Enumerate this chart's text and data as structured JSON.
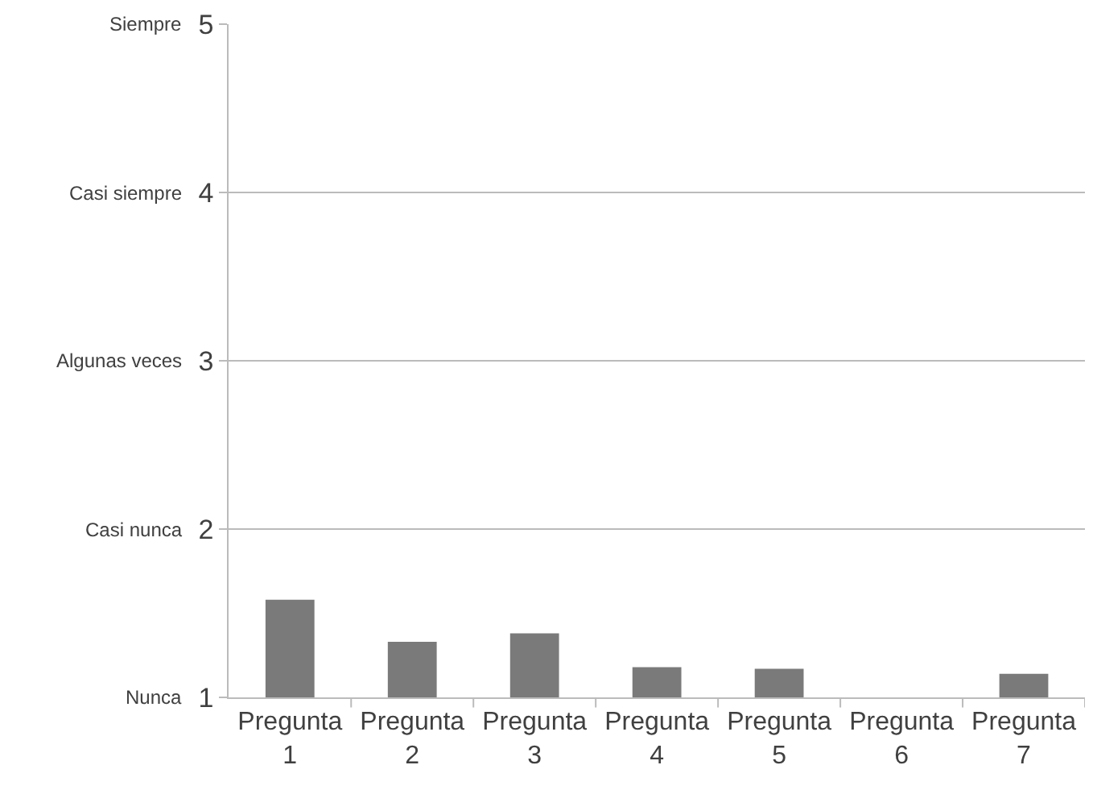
{
  "chart_data": {
    "type": "bar",
    "categories": [
      "Pregunta 1",
      "Pregunta 2",
      "Pregunta 3",
      "Pregunta 4",
      "Pregunta 5",
      "Pregunta 6",
      "Pregunta 7"
    ],
    "values": [
      1.58,
      1.33,
      1.38,
      1.18,
      1.17,
      1,
      1.14
    ],
    "color": "#7a7a7a",
    "ylim": [
      1,
      5
    ],
    "yticks": [
      1,
      2,
      3,
      4,
      5
    ],
    "annotations": [
      "Nunca",
      "Casi nunca",
      "Algunas veces",
      "Casi siempre",
      "Siempre"
    ],
    "grid": "y"
  }
}
